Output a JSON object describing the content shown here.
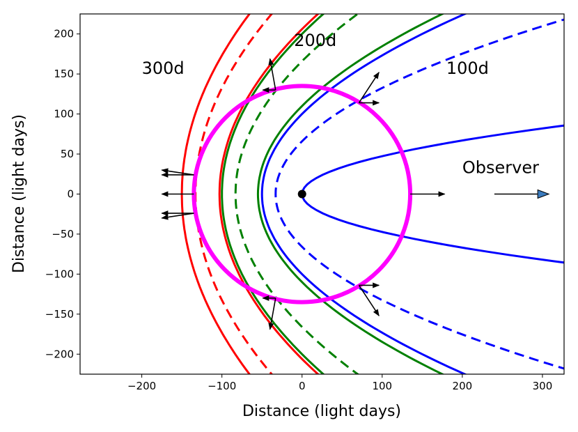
{
  "chart_data": {
    "type": "line",
    "title": "",
    "xlabel": "Distance (light days)",
    "ylabel": "Distance (light days)",
    "xlim": [
      -277,
      327
    ],
    "ylim": [
      -225,
      225
    ],
    "x_ticks": [
      -200,
      -100,
      0,
      100,
      200,
      300
    ],
    "y_ticks": [
      -200,
      -150,
      -100,
      -50,
      0,
      50,
      100,
      150,
      200
    ],
    "x_tick_labels": [
      "−200",
      "−100",
      "0",
      "100",
      "200",
      "300"
    ],
    "y_tick_labels": [
      "−200",
      "−150",
      "−100",
      "−50",
      "0",
      "50",
      "100",
      "150",
      "200"
    ],
    "grid": false,
    "source_point": {
      "x": 0,
      "y": 0,
      "color": "#000000"
    },
    "ring": {
      "type": "circle",
      "center": [
        0,
        0
      ],
      "radius": 135,
      "color": "#ff00ff"
    },
    "parabolas": [
      {
        "name": "100d solid",
        "vertex_x": -50,
        "color": "#0000ff",
        "style": "solid"
      },
      {
        "name": "100d dashed",
        "vertex_x": -33,
        "color": "#0000ff",
        "style": "dashed"
      },
      {
        "name": "100d inner",
        "vertex_x": 0,
        "color": "#0000ff",
        "style": "solid",
        "open_right": true,
        "y_at_x_330": 86
      },
      {
        "name": "200d solid",
        "vertex_x": -100,
        "color": "#008000",
        "style": "solid"
      },
      {
        "name": "200d solid inner",
        "vertex_x": -55,
        "color": "#008000",
        "style": "solid"
      },
      {
        "name": "200d dashed",
        "vertex_x": -83,
        "color": "#008000",
        "style": "dashed"
      },
      {
        "name": "300d solid",
        "vertex_x": -150,
        "color": "#ff0000",
        "style": "solid"
      },
      {
        "name": "300d solid inner",
        "vertex_x": -103,
        "color": "#ff0000",
        "style": "solid"
      },
      {
        "name": "300d dashed",
        "vertex_x": -133,
        "color": "#ff0000",
        "style": "dashed"
      }
    ],
    "arrows": [
      {
        "from": [
          -135,
          24
        ],
        "to": [
          -175,
          30
        ]
      },
      {
        "from": [
          -135,
          24
        ],
        "to": [
          -175,
          24
        ]
      },
      {
        "from": [
          -135,
          0
        ],
        "to": [
          -175,
          0
        ]
      },
      {
        "from": [
          -135,
          -24
        ],
        "to": [
          -175,
          -24
        ]
      },
      {
        "from": [
          -135,
          -24
        ],
        "to": [
          -175,
          -30
        ]
      },
      {
        "from": [
          135,
          0
        ],
        "to": [
          178,
          0
        ]
      },
      {
        "from": [
          -33,
          130
        ],
        "to": [
          -49,
          130
        ]
      },
      {
        "from": [
          -33,
          130
        ],
        "to": [
          -40,
          169
        ]
      },
      {
        "from": [
          -33,
          -130
        ],
        "to": [
          -49,
          -130
        ]
      },
      {
        "from": [
          -33,
          -130
        ],
        "to": [
          -40,
          -169
        ]
      },
      {
        "from": [
          71,
          114
        ],
        "to": [
          96,
          152
        ]
      },
      {
        "from": [
          71,
          114
        ],
        "to": [
          96,
          114
        ]
      },
      {
        "from": [
          71,
          -114
        ],
        "to": [
          96,
          -152
        ]
      },
      {
        "from": [
          71,
          -114
        ],
        "to": [
          96,
          -114
        ]
      }
    ],
    "observer_arrow": {
      "from": [
        240,
        0
      ],
      "to": [
        308,
        0
      ],
      "fill": "#3b7bbd"
    },
    "annotations": [
      {
        "text": "300d",
        "x": -200,
        "y": 150
      },
      {
        "text": "200d",
        "x": -10,
        "y": 185
      },
      {
        "text": "100d",
        "x": 180,
        "y": 150
      },
      {
        "text": "Observer",
        "x": 200,
        "y": 26
      }
    ]
  }
}
